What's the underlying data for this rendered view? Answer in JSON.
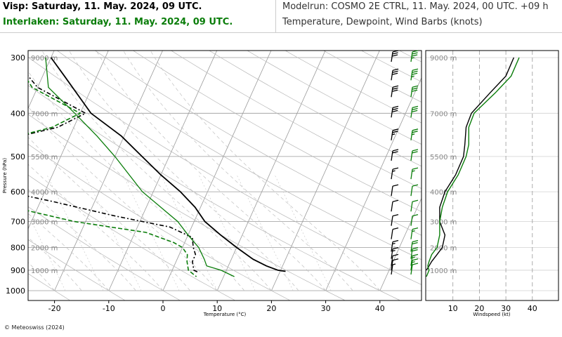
{
  "header": {
    "title_visp": "Visp: Saturday, 11. May. 2024, 09 UTC.",
    "title_interlaken": "Interlaken: Saturday, 11. May. 2024, 09 UTC.",
    "modelrun": "Modelrun: COSMO 2E CTRL, 11. May. 2024, 00 UTC. +09 h",
    "subtitle": "Temperature, Dewpoint, Wind Barbs (knots)"
  },
  "footer": {
    "copyright": "© Meteoswiss (2024)"
  },
  "colors": {
    "visp": "#000000",
    "interlaken": "#0a7d0a",
    "grid": "#b0b0b0"
  },
  "chart_data": [
    {
      "type": "line",
      "subtype": "skew-t",
      "xlabel": "Temperature (°C)",
      "ylabel": "Pressure (hPa)",
      "x_ticks": [
        -20,
        -10,
        0,
        10,
        20,
        30,
        40
      ],
      "y_ticks": [
        300,
        400,
        500,
        600,
        700,
        800,
        900,
        1000
      ],
      "altitude_labels": [
        {
          "label": "9000 m",
          "p": 300
        },
        {
          "label": "7000 m",
          "p": 400
        },
        {
          "label": "5500 m",
          "p": 500
        },
        {
          "label": "4000 m",
          "p": 600
        },
        {
          "label": "3000 m",
          "p": 700
        },
        {
          "label": "2000 m",
          "p": 800
        },
        {
          "label": "1000 m",
          "p": 900
        }
      ],
      "series": [
        {
          "name": "Visp",
          "variable": "temperature",
          "style": "solid",
          "color": "#000000",
          "points": [
            [
              300,
              -40
            ],
            [
              330,
              -36
            ],
            [
              400,
              -28
            ],
            [
              450,
              -20.5
            ],
            [
              500,
              -15
            ],
            [
              550,
              -10
            ],
            [
              600,
              -5
            ],
            [
              650,
              -1
            ],
            [
              700,
              2
            ],
            [
              750,
              6
            ],
            [
              800,
              10
            ],
            [
              850,
              14
            ],
            [
              880,
              17
            ],
            [
              900,
              19.5
            ],
            [
              905,
              21
            ]
          ]
        },
        {
          "name": "Visp",
          "variable": "dewpoint",
          "style": "dashed",
          "color": "#000000",
          "points": [
            [
              300,
              -47
            ],
            [
              350,
              -40
            ],
            [
              400,
              -29
            ],
            [
              430,
              -33
            ],
            [
              470,
              -45
            ],
            [
              500,
              -48
            ],
            [
              540,
              -55
            ],
            [
              570,
              -57
            ],
            [
              590,
              -40
            ],
            [
              630,
              -28
            ],
            [
              680,
              -15
            ],
            [
              720,
              -4
            ],
            [
              760,
              1
            ],
            [
              800,
              2
            ],
            [
              830,
              3
            ],
            [
              860,
              3
            ],
            [
              880,
              3.5
            ],
            [
              900,
              4
            ],
            [
              910,
              5
            ]
          ]
        },
        {
          "name": "Interlaken",
          "variable": "temperature",
          "style": "solid",
          "color": "#0a7d0a",
          "points": [
            [
              300,
              -41
            ],
            [
              350,
              -38
            ],
            [
              400,
              -31
            ],
            [
              450,
              -25
            ],
            [
              500,
              -20
            ],
            [
              600,
              -12
            ],
            [
              700,
              -3
            ],
            [
              750,
              0
            ],
            [
              800,
              3
            ],
            [
              850,
              5
            ],
            [
              880,
              6
            ],
            [
              900,
              9
            ],
            [
              930,
              12
            ]
          ]
        },
        {
          "name": "Interlaken",
          "variable": "dewpoint",
          "style": "dashed",
          "color": "#0a7d0a",
          "points": [
            [
              300,
              -47
            ],
            [
              350,
              -41
            ],
            [
              400,
              -30
            ],
            [
              430,
              -34
            ],
            [
              470,
              -45
            ],
            [
              510,
              -47
            ],
            [
              560,
              -52
            ],
            [
              580,
              -50
            ],
            [
              620,
              -40
            ],
            [
              660,
              -32
            ],
            [
              700,
              -22
            ],
            [
              740,
              -8
            ],
            [
              780,
              -2
            ],
            [
              800,
              0
            ],
            [
              830,
              1.5
            ],
            [
              860,
              2
            ],
            [
              880,
              2.5
            ],
            [
              900,
              3
            ],
            [
              930,
              5
            ]
          ]
        }
      ],
      "wind_barbs": {
        "pressures": [
          300,
          330,
          360,
          400,
          450,
          500,
          550,
          600,
          650,
          700,
          750,
          800,
          830,
          860,
          880,
          900
        ],
        "Visp_kt": [
          30,
          30,
          30,
          30,
          25,
          20,
          15,
          10,
          10,
          10,
          10,
          15,
          15,
          10,
          10,
          5
        ],
        "Interlaken_kt": [
          35,
          35,
          30,
          30,
          25,
          20,
          15,
          10,
          10,
          10,
          15,
          20,
          20,
          15,
          15,
          10
        ]
      }
    },
    {
      "type": "line",
      "subtype": "wind-profile",
      "xlabel": "Windspeed (kt)",
      "x_ticks": [
        10,
        20,
        30,
        40
      ],
      "altitude_labels": [
        "9000 m",
        "7000 m",
        "5500 m",
        "4000 m",
        "3000 m",
        "2000 m",
        "1000 m"
      ],
      "series": [
        {
          "name": "Visp",
          "color": "#000000",
          "points": [
            [
              300,
              33
            ],
            [
              330,
              30
            ],
            [
              360,
              24
            ],
            [
              400,
              17
            ],
            [
              430,
              15
            ],
            [
              470,
              14.5
            ],
            [
              500,
              14
            ],
            [
              550,
              11
            ],
            [
              600,
              7
            ],
            [
              650,
              5
            ],
            [
              700,
              5
            ],
            [
              750,
              7
            ],
            [
              800,
              6
            ],
            [
              830,
              4
            ],
            [
              860,
              2
            ],
            [
              880,
              1
            ],
            [
              900,
              0
            ]
          ]
        },
        {
          "name": "Interlaken",
          "color": "#0a7d0a",
          "points": [
            [
              300,
              35
            ],
            [
              330,
              32
            ],
            [
              360,
              26
            ],
            [
              400,
              18
            ],
            [
              430,
              16
            ],
            [
              470,
              16
            ],
            [
              500,
              15
            ],
            [
              550,
              12
            ],
            [
              600,
              8
            ],
            [
              650,
              6
            ],
            [
              700,
              5
            ],
            [
              750,
              5
            ],
            [
              800,
              4
            ],
            [
              830,
              2
            ],
            [
              860,
              1
            ],
            [
              880,
              0.5
            ],
            [
              900,
              1
            ],
            [
              930,
              0
            ]
          ]
        }
      ]
    }
  ]
}
